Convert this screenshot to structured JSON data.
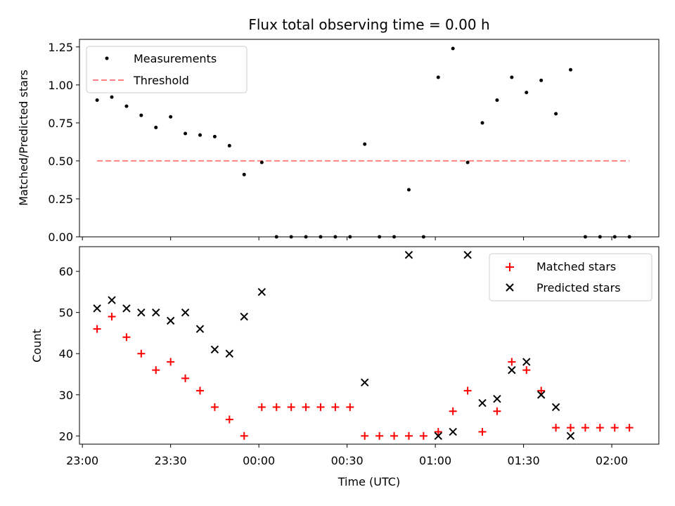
{
  "chart_data": [
    {
      "type": "scatter",
      "title": "Flux total observing time = 0.00 h",
      "xlabel": "",
      "ylabel": "Matched/Predicted stars",
      "ylim": [
        0,
        1.3
      ],
      "yticks": [
        "0.00",
        "0.25",
        "0.50",
        "0.75",
        "1.00",
        "1.25"
      ],
      "legend": {
        "placement": "top-left",
        "entries": [
          "Measurements",
          "Threshold"
        ]
      },
      "series": [
        {
          "name": "Measurements",
          "marker": "dot",
          "color": "#000000",
          "x": [
            "23:05",
            "23:10",
            "23:15",
            "23:20",
            "23:25",
            "23:30",
            "23:35",
            "23:40",
            "23:45",
            "23:50",
            "23:55",
            "00:01",
            "00:06",
            "00:11",
            "00:16",
            "00:21",
            "00:26",
            "00:31",
            "00:36",
            "00:41",
            "00:46",
            "00:51",
            "00:56",
            "01:01",
            "01:06",
            "01:11",
            "01:16",
            "01:21",
            "01:26",
            "01:31",
            "01:36",
            "01:41",
            "01:46",
            "01:51",
            "01:56",
            "02:01",
            "02:06"
          ],
          "y": [
            0.9,
            0.92,
            0.86,
            0.8,
            0.72,
            0.79,
            0.68,
            0.67,
            0.66,
            0.6,
            0.41,
            0.49,
            0.0,
            0.0,
            0.0,
            0.0,
            0.0,
            0.0,
            0.61,
            0.0,
            0.0,
            0.31,
            0.0,
            1.05,
            1.24,
            0.49,
            0.75,
            0.9,
            1.05,
            0.95,
            1.03,
            0.81,
            1.1,
            0.0,
            0.0,
            0.0,
            0.0
          ]
        },
        {
          "name": "Threshold",
          "style": "dashed",
          "color": "#ff8080",
          "x": [
            "23:05",
            "02:06"
          ],
          "y": [
            0.5,
            0.5
          ]
        }
      ]
    },
    {
      "type": "scatter",
      "title": "",
      "xlabel": "Time (UTC)",
      "ylabel": "Count",
      "ylim": [
        18,
        66
      ],
      "yticks": [
        "20",
        "30",
        "40",
        "50",
        "60"
      ],
      "xlim": [
        "22:59",
        "02:16"
      ],
      "xticks": [
        "23:00",
        "23:30",
        "00:00",
        "00:30",
        "01:00",
        "01:30",
        "02:00"
      ],
      "legend": {
        "placement": "top-right",
        "entries": [
          "Matched stars",
          "Predicted stars"
        ]
      },
      "series": [
        {
          "name": "Matched stars",
          "marker": "plus",
          "color": "#ff0000",
          "x": [
            "23:05",
            "23:10",
            "23:15",
            "23:20",
            "23:25",
            "23:30",
            "23:35",
            "23:40",
            "23:45",
            "23:50",
            "23:55",
            "00:01",
            "00:06",
            "00:11",
            "00:16",
            "00:21",
            "00:26",
            "00:31",
            "00:36",
            "00:41",
            "00:46",
            "00:51",
            "00:56",
            "01:01",
            "01:06",
            "01:11",
            "01:16",
            "01:21",
            "01:26",
            "01:31",
            "01:36",
            "01:41",
            "01:46",
            "01:51",
            "01:56",
            "02:01",
            "02:06"
          ],
          "y": [
            46,
            49,
            44,
            40,
            36,
            38,
            34,
            31,
            27,
            24,
            20,
            27,
            27,
            27,
            27,
            27,
            27,
            27,
            20,
            20,
            20,
            20,
            20,
            21,
            26,
            31,
            21,
            26,
            38,
            36,
            31,
            22,
            22,
            22,
            22,
            22,
            22
          ]
        },
        {
          "name": "Predicted stars",
          "marker": "x",
          "color": "#000000",
          "x": [
            "23:05",
            "23:10",
            "23:15",
            "23:20",
            "23:25",
            "23:30",
            "23:35",
            "23:40",
            "23:45",
            "23:50",
            "23:55",
            "00:01",
            "00:36",
            "00:51",
            "01:01",
            "01:06",
            "01:11",
            "01:16",
            "01:21",
            "01:26",
            "01:31",
            "01:36",
            "01:41",
            "01:46"
          ],
          "y": [
            51,
            53,
            51,
            50,
            50,
            48,
            50,
            46,
            41,
            40,
            49,
            55,
            33,
            64,
            20,
            21,
            64,
            28,
            29,
            36,
            38,
            30,
            27,
            20
          ]
        }
      ]
    }
  ]
}
